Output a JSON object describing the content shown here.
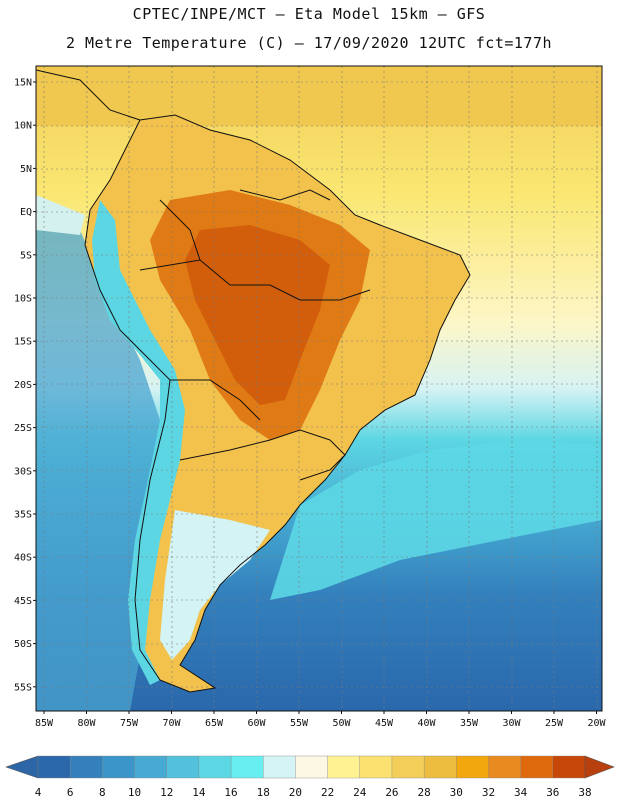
{
  "header": {
    "line1": "CPTEC/INPE/MCT –  Eta Model 15km – GFS",
    "line2": "2 Metre Temperature (C) – 17/09/2020 12UTC fct=177h"
  },
  "map": {
    "lat_labels": [
      "15N",
      "10N",
      "5N",
      "EQ",
      "5S",
      "10S",
      "15S",
      "20S",
      "25S",
      "30S",
      "35S",
      "40S",
      "45S",
      "50S",
      "55S"
    ],
    "lon_labels": [
      "85W",
      "80W",
      "75W",
      "70W",
      "65W",
      "60W",
      "55W",
      "50W",
      "45W",
      "40W",
      "35W",
      "30W",
      "25W",
      "20W"
    ]
  },
  "colorbar": {
    "labels": [
      "4",
      "6",
      "8",
      "10",
      "12",
      "14",
      "16",
      "18",
      "20",
      "22",
      "24",
      "26",
      "28",
      "30",
      "32",
      "34",
      "36",
      "38"
    ],
    "colors": [
      "#2a68ab",
      "#3380bd",
      "#3c95c8",
      "#46aad2",
      "#52c2dc",
      "#5cd7e4",
      "#66eef0",
      "#d4f4f6",
      "#fdf8e4",
      "#fff293",
      "#fbe170",
      "#f3cf59",
      "#ecbd3f",
      "#f2a70e",
      "#e98a20",
      "#df6a0d",
      "#c74708"
    ],
    "low_color": "#2d66a6",
    "high_color": "#b8400e"
  }
}
